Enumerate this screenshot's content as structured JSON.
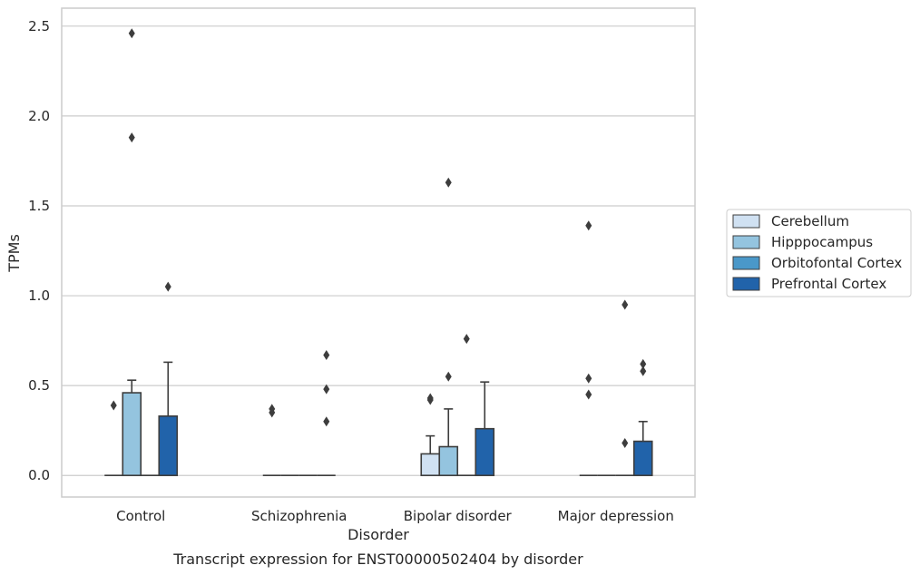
{
  "chart_data": {
    "type": "bar",
    "xlabel": "Disorder",
    "ylabel": "TPMs",
    "caption": "Transcript expression for ENST00000502404 by disorder",
    "ylim": [
      -0.12,
      2.6
    ],
    "yticks": [
      0.0,
      0.5,
      1.0,
      1.5,
      2.0,
      2.5
    ],
    "ytick_labels": [
      "0.0",
      "0.5",
      "1.0",
      "1.5",
      "2.0",
      "2.5"
    ],
    "grid": "horizontal",
    "legend_position": "right",
    "categories": [
      "Control",
      "Schizophrenia",
      "Bipolar disorder",
      "Major depression"
    ],
    "series": [
      {
        "name": "Cerebellum",
        "color": "#d0e1f2",
        "values": [
          0.0,
          0.0,
          0.12,
          0.0
        ],
        "error_upper": [
          0.0,
          0.0,
          0.22,
          0.0
        ],
        "outliers": [
          [
            0.39
          ],
          [
            0.35,
            0.37
          ],
          [
            0.42,
            0.43
          ],
          [
            0.45,
            0.54,
            1.39
          ]
        ]
      },
      {
        "name": "Hipppocampus",
        "color": "#94c4df",
        "values": [
          0.46,
          0.0,
          0.16,
          0.0
        ],
        "error_upper": [
          0.53,
          0.0,
          0.37,
          0.0
        ],
        "outliers": [
          [
            1.88,
            2.46
          ],
          [],
          [
            0.55,
            1.63
          ],
          []
        ]
      },
      {
        "name": "Orbitofontal Cortex",
        "color": "#4a98c9",
        "values": [
          0.0,
          0.0,
          0.0,
          0.0
        ],
        "error_upper": [
          0.0,
          0.0,
          0.0,
          0.0
        ],
        "outliers": [
          [],
          [],
          [
            0.76
          ],
          [
            0.18,
            0.95
          ]
        ]
      },
      {
        "name": "Prefrontal Cortex",
        "color": "#2163aa",
        "values": [
          0.33,
          0.0,
          0.26,
          0.19
        ],
        "error_upper": [
          0.63,
          0.0,
          0.52,
          0.3
        ],
        "outliers": [
          [
            1.05
          ],
          [
            0.3,
            0.48,
            0.67
          ],
          [],
          [
            0.58,
            0.62
          ]
        ]
      }
    ]
  }
}
